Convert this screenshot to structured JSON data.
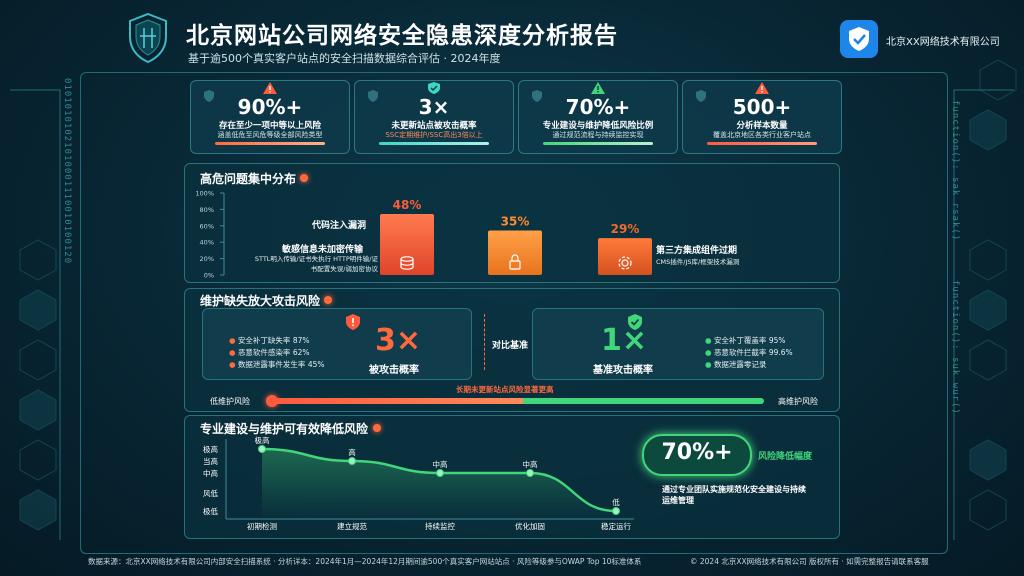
{
  "header": {
    "title": "北京网站公司网络安全隐患深度分析报告",
    "subtitle": "基于逾500个真实客户站点的安全扫描数据综合评估 · 2024年度",
    "company": "北京XX网络技术有限公司"
  },
  "side_code": {
    "left": "01010101021010001110010100120",
    "right_top": "function(): sak rsak()",
    "right_bottom": "function(): suk wur()"
  },
  "kpis": [
    {
      "value": "90%+",
      "label": "存在至少一项中等以上风险",
      "sub": "涵盖低危至风危等级全部风险类型",
      "accent": "#ff6a3d",
      "icon": "warning-triangle-icon"
    },
    {
      "value": "3×",
      "label": "未更新站点被攻击概率",
      "sub": "SSC定期维护/SSC高出3倍以上",
      "accent": "#3dd6c0",
      "icon": "shield-icon"
    },
    {
      "value": "70%+",
      "label": "专业建设与维护降低风险比例",
      "sub": "通过规范流程与持续监控实现",
      "accent": "#41d67a",
      "icon": "warning-triangle-icon"
    },
    {
      "value": "500+",
      "label": "分析样本数量",
      "sub": "覆盖北京地区各类行业客户站点",
      "accent": "#ff5a3d",
      "icon": "warning-triangle-icon"
    }
  ],
  "section1": {
    "title": "高危问题集中分布",
    "y_ticks": [
      "100%",
      "80%",
      "60%",
      "40%",
      "20%",
      "0%"
    ],
    "bar_labels": [
      {
        "name": "代码注入漏洞",
        "desc": ""
      },
      {
        "name": "敏感信息未加密传输",
        "desc": "STTL明入传输/证书失执行 HTTP明件输/证书配置失误/弱加密协议"
      },
      {
        "name": "第三方集成组件过期",
        "desc": "CMS插件/JS库/框架技术漏洞"
      }
    ]
  },
  "chart_data": {
    "type": "bar",
    "categories": [
      "代码注入漏洞",
      "敏感信息未加密传输",
      "第三方集成组件过期"
    ],
    "values": [
      48,
      35,
      29
    ],
    "value_labels": [
      "48%",
      "35%",
      "29%"
    ],
    "ylim": [
      0,
      100
    ],
    "colors": [
      "#ff5a3d",
      "#ff8a30",
      "#f06a2a"
    ],
    "icons": [
      "database-icon",
      "lock-icon",
      "gear-icon"
    ]
  },
  "section2": {
    "title": "维护缺失放大攻击风险",
    "left_items": [
      "安全补丁缺失率 87%",
      "恶意软件感染率 62%",
      "数据泄露事件发生率 45%"
    ],
    "left_value": "3×",
    "left_caption": "被攻击概率",
    "compare_label": "对比基准",
    "right_items": [
      "安全补丁覆盖率 95%",
      "恶意软件拦截率 99.6%",
      "数据泄露零记录"
    ],
    "right_value": "1×",
    "right_caption": "基准攻击概率",
    "scale_note": "长期未更新站点风险显著更高",
    "scale_left": "低维护风险",
    "scale_right": "高维护风险",
    "risk_fraction": 0.51
  },
  "section3": {
    "title": "专业建设与维护可有效降低风险",
    "y_levels": [
      "极高",
      "高",
      "中高",
      "风低",
      "极低"
    ],
    "stages": [
      "初期检测",
      "建立规范",
      "持续监控",
      "优化加固",
      "稳定运行"
    ],
    "points": [
      {
        "stage": "初期检测",
        "level": "极高"
      },
      {
        "stage": "建立规范",
        "level": "高"
      },
      {
        "stage": "持续监控",
        "level": "中高"
      },
      {
        "stage": "优化加固",
        "level": "中高"
      },
      {
        "stage": "稳定运行",
        "level": "低"
      }
    ],
    "badge_value": "70%+",
    "badge_label": "风险降低幅度",
    "note": "通过专业团队实施规范化安全建设与持续运维管理"
  },
  "footer": {
    "left": "数据来源：北京XX网络技术有限公司内部安全扫描系统 · 分析详本：2024年1月—2024年12月期间逾500个真实客户网站站点 · 风险等级参与OWAP Top 10标准体系",
    "right": "© 2024 北京XX网络技术有限公司 版权所有 · 如需完整报告请联系客服"
  }
}
